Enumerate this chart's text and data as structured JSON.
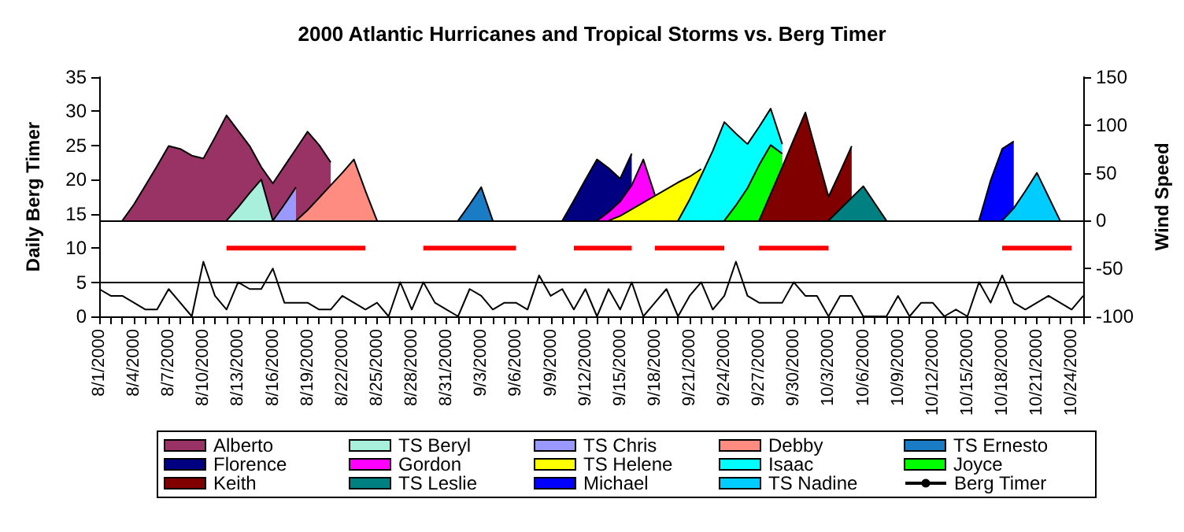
{
  "chart_data": {
    "type": "area",
    "title": "2000 Atlantic Hurricanes and Tropical Storms vs. Berg Timer",
    "ylabel": "Daily Berg Timer",
    "y2label": "Wind Speed",
    "categories": [
      "8/1/2000",
      null,
      null,
      "8/4/2000",
      null,
      null,
      "8/7/2000",
      null,
      null,
      "8/10/2000",
      null,
      null,
      "8/13/2000",
      null,
      null,
      "8/16/2000",
      null,
      null,
      "8/19/2000",
      null,
      null,
      "8/22/2000",
      null,
      null,
      "8/25/2000",
      null,
      null,
      "8/28/2000",
      null,
      null,
      "8/31/2000",
      null,
      null,
      "9/3/2000",
      null,
      null,
      "9/6/2000",
      null,
      null,
      "9/9/2000",
      null,
      null,
      "9/12/2000",
      null,
      null,
      "9/15/2000",
      null,
      null,
      "9/18/2000",
      null,
      null,
      "9/21/2000",
      null,
      null,
      "9/24/2000",
      null,
      null,
      "9/27/2000",
      null,
      null,
      "9/30/2000",
      null,
      null,
      "10/3/2000",
      null,
      null,
      "10/6/2000",
      null,
      null,
      "10/9/2000",
      null,
      null,
      "10/12/2000",
      null,
      null,
      "10/15/2000",
      null,
      null,
      "10/18/2000",
      null,
      null,
      "10/21/2000",
      null,
      null,
      "10/24/2000",
      null
    ],
    "ylim": [
      0,
      35
    ],
    "yticks": [
      0,
      5,
      10,
      15,
      20,
      25,
      30,
      35
    ],
    "y2lim": [
      -100,
      150
    ],
    "y2ticks": [
      -100,
      -50,
      0,
      50,
      100,
      150
    ],
    "grid": false,
    "legend": "bottom",
    "ref_lines": [
      {
        "axis": "y",
        "value": 5,
        "color": "#000000"
      },
      {
        "axis": "y2",
        "value": 0,
        "color": "#000000"
      }
    ],
    "series": [
      {
        "name": "Alberto",
        "color": "#993366",
        "axis": "y2",
        "values": [
          null,
          null,
          0,
          17,
          37,
          57,
          78,
          75,
          68,
          65,
          87,
          110,
          94,
          78,
          56,
          39,
          57,
          75,
          93,
          79,
          61,
          null,
          null,
          null,
          null,
          null,
          null,
          null,
          null,
          null,
          null,
          null,
          null,
          null,
          null,
          null,
          null,
          null,
          null,
          null,
          null,
          null,
          null,
          null,
          null,
          null,
          null,
          null,
          null,
          null,
          null,
          null,
          null,
          null,
          null,
          null,
          null,
          null,
          null,
          null,
          null,
          null,
          null,
          null,
          null,
          null,
          null,
          null,
          null,
          null,
          null,
          null,
          null,
          null,
          null,
          null,
          null,
          null,
          null,
          null,
          null,
          null,
          null,
          null,
          null,
          null
        ]
      },
      {
        "name": "TS Beryl",
        "color": "#a8f0dc",
        "axis": "y2",
        "values": [
          null,
          null,
          null,
          null,
          null,
          null,
          null,
          null,
          null,
          null,
          null,
          0,
          14,
          29,
          43,
          0,
          null,
          null,
          null,
          null,
          null,
          null,
          null,
          null,
          null,
          null,
          null,
          null,
          null,
          null,
          null,
          null,
          null,
          null,
          null,
          null,
          null,
          null,
          null,
          null,
          null,
          null,
          null,
          null,
          null,
          null,
          null,
          null,
          null,
          null,
          null,
          null,
          null,
          null,
          null,
          null,
          null,
          null,
          null,
          null,
          null,
          null,
          null,
          null,
          null,
          null,
          null,
          null,
          null,
          null,
          null,
          null,
          null,
          null,
          null,
          null,
          null,
          null,
          null,
          null,
          null,
          null,
          null,
          null,
          null,
          null
        ]
      },
      {
        "name": "TS Chris",
        "color": "#9999ff",
        "axis": "y2",
        "values": [
          null,
          null,
          null,
          null,
          null,
          null,
          null,
          null,
          null,
          null,
          null,
          null,
          null,
          null,
          null,
          0,
          17,
          35,
          null,
          null,
          null,
          null,
          null,
          null,
          null,
          null,
          null,
          null,
          null,
          null,
          null,
          null,
          null,
          null,
          null,
          null,
          null,
          null,
          null,
          null,
          null,
          null,
          null,
          null,
          null,
          null,
          null,
          null,
          null,
          null,
          null,
          null,
          null,
          null,
          null,
          null,
          null,
          null,
          null,
          null,
          null,
          null,
          null,
          null,
          null,
          null,
          null,
          null,
          null,
          null,
          null,
          null,
          null,
          null,
          null,
          null,
          null,
          null,
          null,
          null,
          null,
          null,
          null,
          null,
          null,
          null
        ]
      },
      {
        "name": "Debby",
        "color": "#ff8c80",
        "axis": "y2",
        "values": [
          null,
          null,
          null,
          null,
          null,
          null,
          null,
          null,
          null,
          null,
          null,
          null,
          null,
          null,
          null,
          null,
          null,
          0,
          11,
          24,
          37,
          50,
          64,
          31,
          0,
          null,
          null,
          null,
          null,
          null,
          null,
          null,
          null,
          null,
          null,
          null,
          null,
          null,
          null,
          null,
          null,
          null,
          null,
          null,
          null,
          null,
          null,
          null,
          null,
          null,
          null,
          null,
          null,
          null,
          null,
          null,
          null,
          null,
          null,
          null,
          null,
          null,
          null,
          null,
          null,
          null,
          null,
          null,
          null,
          null,
          null,
          null,
          null,
          null,
          null,
          null,
          null,
          null,
          null,
          null,
          null,
          null,
          null,
          null,
          null,
          null
        ]
      },
      {
        "name": "TS Ernesto",
        "color": "#1a7cc4",
        "axis": "y2",
        "values": [
          null,
          null,
          null,
          null,
          null,
          null,
          null,
          null,
          null,
          null,
          null,
          null,
          null,
          null,
          null,
          null,
          null,
          null,
          null,
          null,
          null,
          null,
          null,
          null,
          null,
          null,
          null,
          null,
          null,
          null,
          null,
          0,
          17,
          35,
          0,
          null,
          null,
          null,
          null,
          null,
          null,
          null,
          null,
          null,
          null,
          null,
          null,
          null,
          null,
          null,
          null,
          null,
          null,
          null,
          null,
          null,
          null,
          null,
          null,
          null,
          null,
          null,
          null,
          null,
          null,
          null,
          null,
          null,
          null,
          null,
          null,
          null,
          null,
          null,
          null,
          null,
          null,
          null,
          null,
          null,
          null,
          null,
          null,
          null,
          null,
          null
        ]
      },
      {
        "name": "Florence",
        "color": "#000080",
        "axis": "y2",
        "values": [
          null,
          null,
          null,
          null,
          null,
          null,
          null,
          null,
          null,
          null,
          null,
          null,
          null,
          null,
          null,
          null,
          null,
          null,
          null,
          null,
          null,
          null,
          null,
          null,
          null,
          null,
          null,
          null,
          null,
          null,
          null,
          null,
          null,
          null,
          null,
          null,
          null,
          null,
          null,
          null,
          0,
          21,
          43,
          64,
          55,
          44,
          70,
          null,
          null,
          null,
          null,
          null,
          null,
          null,
          null,
          null,
          null,
          null,
          null,
          null,
          null,
          null,
          null,
          null,
          null,
          null,
          null,
          null,
          null,
          null,
          null,
          null,
          null,
          null,
          null,
          null,
          null,
          null,
          null,
          null,
          null,
          null,
          null,
          null,
          null,
          null
        ]
      },
      {
        "name": "Gordon",
        "color": "#ff00ff",
        "axis": "y2",
        "values": [
          null,
          null,
          null,
          null,
          null,
          null,
          null,
          null,
          null,
          null,
          null,
          null,
          null,
          null,
          null,
          null,
          null,
          null,
          null,
          null,
          null,
          null,
          null,
          null,
          null,
          null,
          null,
          null,
          null,
          null,
          null,
          null,
          null,
          null,
          null,
          null,
          null,
          null,
          null,
          null,
          null,
          null,
          null,
          0,
          9,
          20,
          37,
          64,
          27,
          null,
          null,
          null,
          null,
          null,
          null,
          null,
          null,
          null,
          null,
          null,
          null,
          null,
          null,
          null,
          null,
          null,
          null,
          null,
          null,
          null,
          null,
          null,
          null,
          null,
          null,
          null,
          null,
          null,
          null,
          null,
          null,
          null,
          null,
          null,
          null,
          null
        ]
      },
      {
        "name": "TS Helene",
        "color": "#ffff00",
        "axis": "y2",
        "values": [
          null,
          null,
          null,
          null,
          null,
          null,
          null,
          null,
          null,
          null,
          null,
          null,
          null,
          null,
          null,
          null,
          null,
          null,
          null,
          null,
          null,
          null,
          null,
          null,
          null,
          null,
          null,
          null,
          null,
          null,
          null,
          null,
          null,
          null,
          null,
          null,
          null,
          null,
          null,
          null,
          null,
          null,
          null,
          null,
          0,
          5,
          12,
          19,
          26,
          33,
          40,
          46,
          54,
          null,
          null,
          null,
          null,
          null,
          null,
          null,
          null,
          null,
          null,
          null,
          null,
          null,
          null,
          null,
          null,
          null,
          null,
          null,
          null,
          null,
          null,
          null,
          null,
          null,
          null,
          null,
          null,
          null,
          null,
          null,
          null,
          null
        ]
      },
      {
        "name": "Isaac",
        "color": "#00ffff",
        "axis": "y2",
        "values": [
          null,
          null,
          null,
          null,
          null,
          null,
          null,
          null,
          null,
          null,
          null,
          null,
          null,
          null,
          null,
          null,
          null,
          null,
          null,
          null,
          null,
          null,
          null,
          null,
          null,
          null,
          null,
          null,
          null,
          null,
          null,
          null,
          null,
          null,
          null,
          null,
          null,
          null,
          null,
          null,
          null,
          null,
          null,
          null,
          null,
          null,
          null,
          null,
          null,
          null,
          0,
          22,
          47,
          73,
          103,
          91,
          80,
          98,
          117,
          80,
          null,
          null,
          null,
          null,
          null,
          null,
          null,
          null,
          null,
          null,
          null,
          null,
          null,
          null,
          null,
          null,
          null,
          null,
          null,
          null,
          null,
          null,
          null,
          null,
          null,
          null
        ]
      },
      {
        "name": "Joyce",
        "color": "#00ff00",
        "axis": "y2",
        "values": [
          null,
          null,
          null,
          null,
          null,
          null,
          null,
          null,
          null,
          null,
          null,
          null,
          null,
          null,
          null,
          null,
          null,
          null,
          null,
          null,
          null,
          null,
          null,
          null,
          null,
          null,
          null,
          null,
          null,
          null,
          null,
          null,
          null,
          null,
          null,
          null,
          null,
          null,
          null,
          null,
          null,
          null,
          null,
          null,
          null,
          null,
          null,
          null,
          null,
          null,
          null,
          null,
          null,
          null,
          0,
          16,
          34,
          58,
          79,
          70,
          null,
          null,
          null,
          null,
          null,
          null,
          null,
          null,
          null,
          null,
          null,
          null,
          null,
          null,
          null,
          null,
          null,
          null,
          null,
          null,
          null,
          null,
          null,
          null,
          null,
          null
        ]
      },
      {
        "name": "Keith",
        "color": "#800000",
        "axis": "y2",
        "values": [
          null,
          null,
          null,
          null,
          null,
          null,
          null,
          null,
          null,
          null,
          null,
          null,
          null,
          null,
          null,
          null,
          null,
          null,
          null,
          null,
          null,
          null,
          null,
          null,
          null,
          null,
          null,
          null,
          null,
          null,
          null,
          null,
          null,
          null,
          null,
          null,
          null,
          null,
          null,
          null,
          null,
          null,
          null,
          null,
          null,
          null,
          null,
          null,
          null,
          null,
          null,
          null,
          null,
          null,
          null,
          null,
          null,
          0,
          28,
          56,
          85,
          113,
          69,
          25,
          51,
          78,
          null,
          null,
          null,
          null,
          null,
          null,
          null,
          null,
          null,
          null,
          null,
          null,
          null,
          null,
          null,
          null,
          null,
          null,
          null,
          null
        ]
      },
      {
        "name": "TS Leslie",
        "color": "#008080",
        "axis": "y2",
        "values": [
          null,
          null,
          null,
          null,
          null,
          null,
          null,
          null,
          null,
          null,
          null,
          null,
          null,
          null,
          null,
          null,
          null,
          null,
          null,
          null,
          null,
          null,
          null,
          null,
          null,
          null,
          null,
          null,
          null,
          null,
          null,
          null,
          null,
          null,
          null,
          null,
          null,
          null,
          null,
          null,
          null,
          null,
          null,
          null,
          null,
          null,
          null,
          null,
          null,
          null,
          null,
          null,
          null,
          null,
          null,
          null,
          null,
          null,
          null,
          null,
          null,
          null,
          null,
          0,
          12,
          24,
          36,
          18,
          0,
          null,
          null,
          null,
          null,
          null,
          null,
          null,
          null,
          null,
          null,
          null,
          null,
          null,
          null,
          null,
          null,
          null
        ]
      },
      {
        "name": "Michael",
        "color": "#0000ff",
        "axis": "y2",
        "values": [
          null,
          null,
          null,
          null,
          null,
          null,
          null,
          null,
          null,
          null,
          null,
          null,
          null,
          null,
          null,
          null,
          null,
          null,
          null,
          null,
          null,
          null,
          null,
          null,
          null,
          null,
          null,
          null,
          null,
          null,
          null,
          null,
          null,
          null,
          null,
          null,
          null,
          null,
          null,
          null,
          null,
          null,
          null,
          null,
          null,
          null,
          null,
          null,
          null,
          null,
          null,
          null,
          null,
          null,
          null,
          null,
          null,
          null,
          null,
          null,
          null,
          null,
          null,
          null,
          null,
          null,
          null,
          null,
          null,
          null,
          null,
          null,
          null,
          null,
          null,
          null,
          0,
          42,
          75,
          83,
          null,
          null,
          null,
          null,
          null,
          null
        ]
      },
      {
        "name": "TS Nadine",
        "color": "#00ccff",
        "axis": "y2",
        "values": [
          null,
          null,
          null,
          null,
          null,
          null,
          null,
          null,
          null,
          null,
          null,
          null,
          null,
          null,
          null,
          null,
          null,
          null,
          null,
          null,
          null,
          null,
          null,
          null,
          null,
          null,
          null,
          null,
          null,
          null,
          null,
          null,
          null,
          null,
          null,
          null,
          null,
          null,
          null,
          null,
          null,
          null,
          null,
          null,
          null,
          null,
          null,
          null,
          null,
          null,
          null,
          null,
          null,
          null,
          null,
          null,
          null,
          null,
          null,
          null,
          null,
          null,
          null,
          null,
          null,
          null,
          null,
          null,
          null,
          null,
          null,
          null,
          null,
          null,
          null,
          null,
          null,
          null,
          0,
          13,
          31,
          50,
          25,
          0,
          null,
          null
        ]
      },
      {
        "name": "Berg Timer",
        "type": "line",
        "color": "#000000",
        "values": [
          4,
          3,
          3,
          2,
          1,
          1,
          4,
          2,
          0,
          8,
          3,
          1,
          5,
          4,
          4,
          7,
          2,
          2,
          2,
          1,
          1,
          3,
          2,
          1,
          2,
          0,
          5,
          1,
          5,
          2,
          1,
          0,
          4,
          3,
          1,
          2,
          2,
          1,
          6,
          3,
          4,
          1,
          4,
          0,
          4,
          1,
          5,
          0,
          2,
          4,
          0,
          3,
          5,
          1,
          3,
          8,
          3,
          2,
          2,
          2,
          5,
          3,
          3,
          0,
          3,
          3,
          0,
          0,
          0,
          3,
          0,
          2,
          2,
          0,
          1,
          0,
          5,
          2,
          6,
          2,
          1,
          2,
          3,
          2,
          1,
          3
        ]
      },
      {
        "type": "line",
        "color": "#ff0000",
        "values": [
          null,
          null,
          null,
          null,
          null,
          null,
          null,
          null,
          null,
          null,
          null,
          10,
          10,
          10,
          10,
          10,
          10,
          10,
          10,
          10,
          10,
          10,
          10,
          10,
          null,
          null,
          null,
          null,
          10,
          10,
          10,
          10,
          10,
          10,
          10,
          10,
          10,
          null,
          null,
          null,
          null,
          10,
          10,
          10,
          10,
          10,
          10,
          null,
          10,
          10,
          10,
          10,
          10,
          10,
          10,
          null,
          null,
          10,
          10,
          10,
          10,
          10,
          10,
          10,
          null,
          null,
          null,
          null,
          null,
          null,
          null,
          null,
          null,
          null,
          null,
          null,
          null,
          null,
          10,
          10,
          10,
          10,
          10,
          10,
          10,
          null
        ]
      }
    ]
  }
}
